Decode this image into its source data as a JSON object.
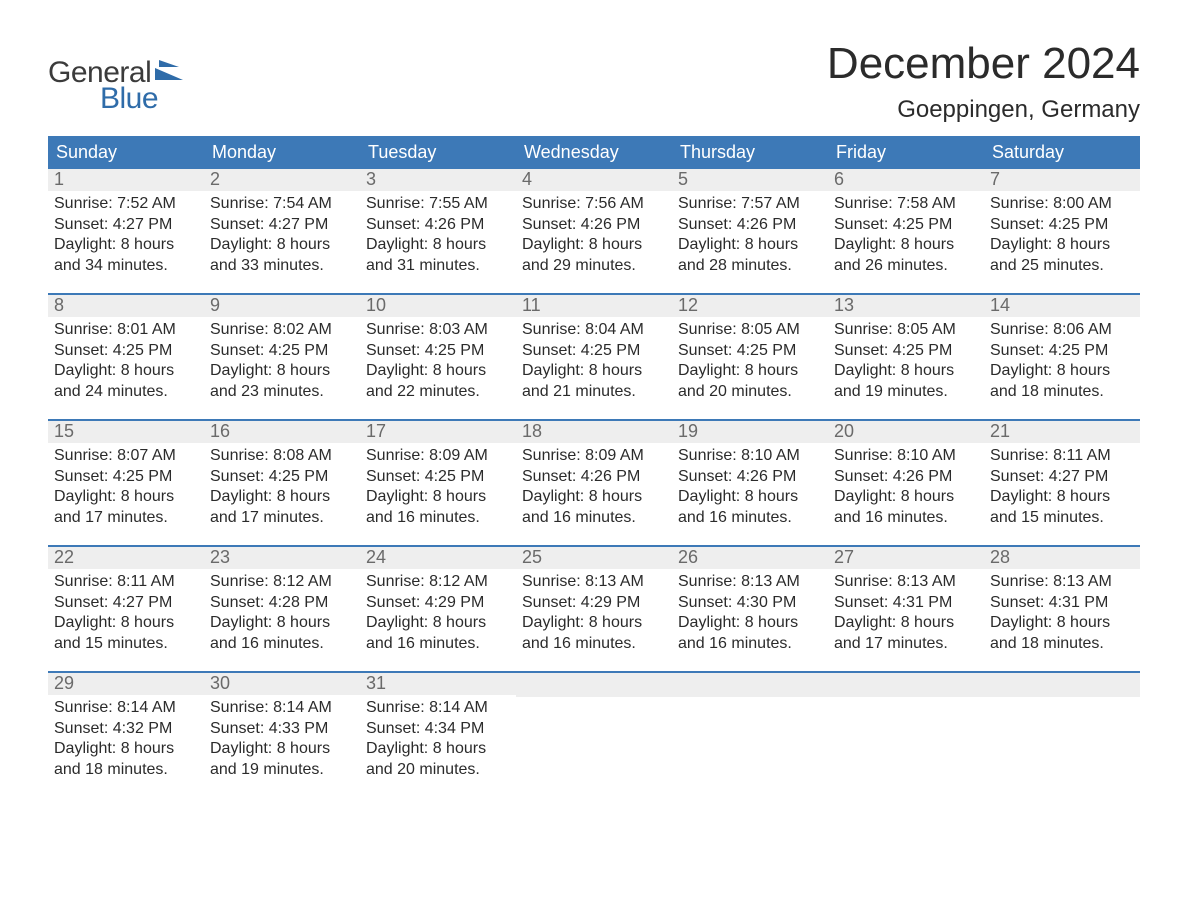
{
  "brand": {
    "word1": "General",
    "word2": "Blue",
    "text_color_dark": "#3b3b3b",
    "text_color_accent": "#2f6ca9",
    "shape_color": "#2f6ca9"
  },
  "title": "December 2024",
  "location": "Goeppingen, Germany",
  "colors": {
    "header_bg": "#3d79b7",
    "header_text": "#ffffff",
    "daynum_bg": "#eeeeee",
    "daynum_text": "#6a6a6a",
    "body_text": "#2b2b2b",
    "week_border": "#3d79b7",
    "page_bg": "#ffffff"
  },
  "weekdays": [
    "Sunday",
    "Monday",
    "Tuesday",
    "Wednesday",
    "Thursday",
    "Friday",
    "Saturday"
  ],
  "weeks": [
    [
      {
        "num": "1",
        "sunrise": "Sunrise: 7:52 AM",
        "sunset": "Sunset: 4:27 PM",
        "day1": "Daylight: 8 hours",
        "day2": "and 34 minutes."
      },
      {
        "num": "2",
        "sunrise": "Sunrise: 7:54 AM",
        "sunset": "Sunset: 4:27 PM",
        "day1": "Daylight: 8 hours",
        "day2": "and 33 minutes."
      },
      {
        "num": "3",
        "sunrise": "Sunrise: 7:55 AM",
        "sunset": "Sunset: 4:26 PM",
        "day1": "Daylight: 8 hours",
        "day2": "and 31 minutes."
      },
      {
        "num": "4",
        "sunrise": "Sunrise: 7:56 AM",
        "sunset": "Sunset: 4:26 PM",
        "day1": "Daylight: 8 hours",
        "day2": "and 29 minutes."
      },
      {
        "num": "5",
        "sunrise": "Sunrise: 7:57 AM",
        "sunset": "Sunset: 4:26 PM",
        "day1": "Daylight: 8 hours",
        "day2": "and 28 minutes."
      },
      {
        "num": "6",
        "sunrise": "Sunrise: 7:58 AM",
        "sunset": "Sunset: 4:25 PM",
        "day1": "Daylight: 8 hours",
        "day2": "and 26 minutes."
      },
      {
        "num": "7",
        "sunrise": "Sunrise: 8:00 AM",
        "sunset": "Sunset: 4:25 PM",
        "day1": "Daylight: 8 hours",
        "day2": "and 25 minutes."
      }
    ],
    [
      {
        "num": "8",
        "sunrise": "Sunrise: 8:01 AM",
        "sunset": "Sunset: 4:25 PM",
        "day1": "Daylight: 8 hours",
        "day2": "and 24 minutes."
      },
      {
        "num": "9",
        "sunrise": "Sunrise: 8:02 AM",
        "sunset": "Sunset: 4:25 PM",
        "day1": "Daylight: 8 hours",
        "day2": "and 23 minutes."
      },
      {
        "num": "10",
        "sunrise": "Sunrise: 8:03 AM",
        "sunset": "Sunset: 4:25 PM",
        "day1": "Daylight: 8 hours",
        "day2": "and 22 minutes."
      },
      {
        "num": "11",
        "sunrise": "Sunrise: 8:04 AM",
        "sunset": "Sunset: 4:25 PM",
        "day1": "Daylight: 8 hours",
        "day2": "and 21 minutes."
      },
      {
        "num": "12",
        "sunrise": "Sunrise: 8:05 AM",
        "sunset": "Sunset: 4:25 PM",
        "day1": "Daylight: 8 hours",
        "day2": "and 20 minutes."
      },
      {
        "num": "13",
        "sunrise": "Sunrise: 8:05 AM",
        "sunset": "Sunset: 4:25 PM",
        "day1": "Daylight: 8 hours",
        "day2": "and 19 minutes."
      },
      {
        "num": "14",
        "sunrise": "Sunrise: 8:06 AM",
        "sunset": "Sunset: 4:25 PM",
        "day1": "Daylight: 8 hours",
        "day2": "and 18 minutes."
      }
    ],
    [
      {
        "num": "15",
        "sunrise": "Sunrise: 8:07 AM",
        "sunset": "Sunset: 4:25 PM",
        "day1": "Daylight: 8 hours",
        "day2": "and 17 minutes."
      },
      {
        "num": "16",
        "sunrise": "Sunrise: 8:08 AM",
        "sunset": "Sunset: 4:25 PM",
        "day1": "Daylight: 8 hours",
        "day2": "and 17 minutes."
      },
      {
        "num": "17",
        "sunrise": "Sunrise: 8:09 AM",
        "sunset": "Sunset: 4:25 PM",
        "day1": "Daylight: 8 hours",
        "day2": "and 16 minutes."
      },
      {
        "num": "18",
        "sunrise": "Sunrise: 8:09 AM",
        "sunset": "Sunset: 4:26 PM",
        "day1": "Daylight: 8 hours",
        "day2": "and 16 minutes."
      },
      {
        "num": "19",
        "sunrise": "Sunrise: 8:10 AM",
        "sunset": "Sunset: 4:26 PM",
        "day1": "Daylight: 8 hours",
        "day2": "and 16 minutes."
      },
      {
        "num": "20",
        "sunrise": "Sunrise: 8:10 AM",
        "sunset": "Sunset: 4:26 PM",
        "day1": "Daylight: 8 hours",
        "day2": "and 16 minutes."
      },
      {
        "num": "21",
        "sunrise": "Sunrise: 8:11 AM",
        "sunset": "Sunset: 4:27 PM",
        "day1": "Daylight: 8 hours",
        "day2": "and 15 minutes."
      }
    ],
    [
      {
        "num": "22",
        "sunrise": "Sunrise: 8:11 AM",
        "sunset": "Sunset: 4:27 PM",
        "day1": "Daylight: 8 hours",
        "day2": "and 15 minutes."
      },
      {
        "num": "23",
        "sunrise": "Sunrise: 8:12 AM",
        "sunset": "Sunset: 4:28 PM",
        "day1": "Daylight: 8 hours",
        "day2": "and 16 minutes."
      },
      {
        "num": "24",
        "sunrise": "Sunrise: 8:12 AM",
        "sunset": "Sunset: 4:29 PM",
        "day1": "Daylight: 8 hours",
        "day2": "and 16 minutes."
      },
      {
        "num": "25",
        "sunrise": "Sunrise: 8:13 AM",
        "sunset": "Sunset: 4:29 PM",
        "day1": "Daylight: 8 hours",
        "day2": "and 16 minutes."
      },
      {
        "num": "26",
        "sunrise": "Sunrise: 8:13 AM",
        "sunset": "Sunset: 4:30 PM",
        "day1": "Daylight: 8 hours",
        "day2": "and 16 minutes."
      },
      {
        "num": "27",
        "sunrise": "Sunrise: 8:13 AM",
        "sunset": "Sunset: 4:31 PM",
        "day1": "Daylight: 8 hours",
        "day2": "and 17 minutes."
      },
      {
        "num": "28",
        "sunrise": "Sunrise: 8:13 AM",
        "sunset": "Sunset: 4:31 PM",
        "day1": "Daylight: 8 hours",
        "day2": "and 18 minutes."
      }
    ],
    [
      {
        "num": "29",
        "sunrise": "Sunrise: 8:14 AM",
        "sunset": "Sunset: 4:32 PM",
        "day1": "Daylight: 8 hours",
        "day2": "and 18 minutes."
      },
      {
        "num": "30",
        "sunrise": "Sunrise: 8:14 AM",
        "sunset": "Sunset: 4:33 PM",
        "day1": "Daylight: 8 hours",
        "day2": "and 19 minutes."
      },
      {
        "num": "31",
        "sunrise": "Sunrise: 8:14 AM",
        "sunset": "Sunset: 4:34 PM",
        "day1": "Daylight: 8 hours",
        "day2": "and 20 minutes."
      },
      null,
      null,
      null,
      null
    ]
  ]
}
